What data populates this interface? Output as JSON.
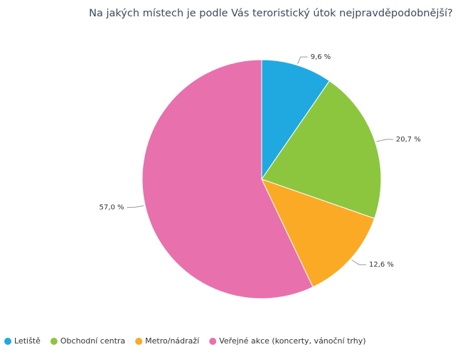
{
  "chart_data": {
    "type": "pie",
    "title": "Na jakých místech je podle Vás teroristický útok nejpravděpodobnější?",
    "categories": [
      "Letiště",
      "Obchodní centra",
      "Metro/nádraží",
      "Veřejné akce (koncerty, vánoční trhy)"
    ],
    "values": [
      9.6,
      20.7,
      12.6,
      57.0
    ],
    "value_labels": [
      "9,6 %",
      "20,7 %",
      "12,6 %",
      "57,0 %"
    ],
    "colors": [
      "#20a9e1",
      "#8cc63f",
      "#fbaa26",
      "#e870ad"
    ],
    "legend": "bottom"
  }
}
